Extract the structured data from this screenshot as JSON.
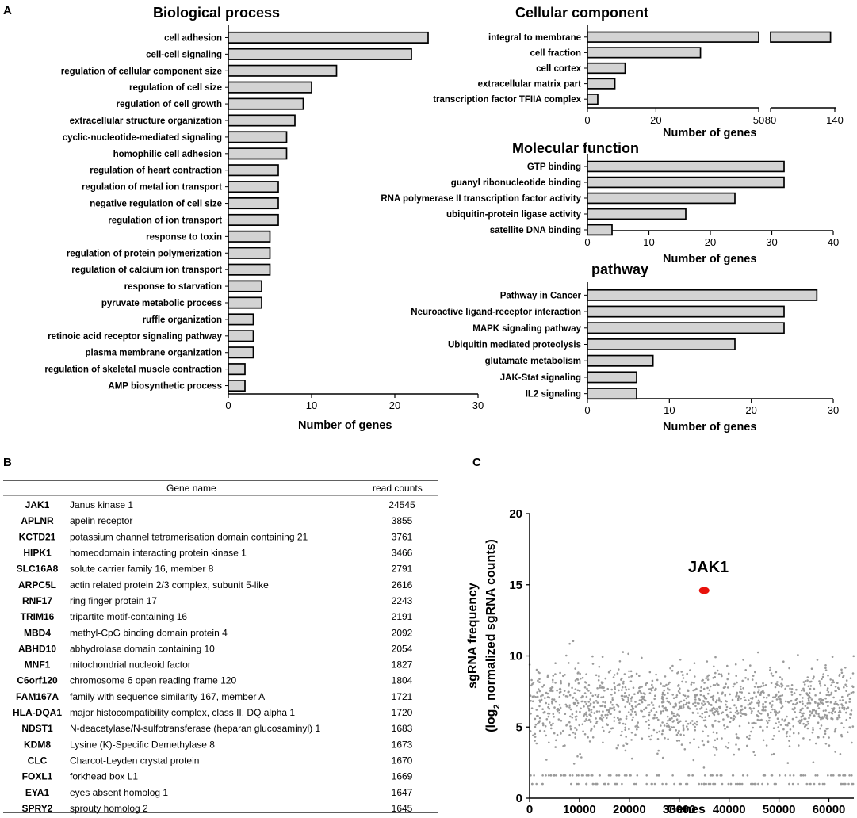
{
  "panels": {
    "a": "A",
    "b": "B",
    "c": "C"
  },
  "chart_data": [
    {
      "id": "bp",
      "type": "bar",
      "orientation": "horizontal",
      "title": "Biological process",
      "xlabel": "Number of genes",
      "xlim": [
        0,
        30
      ],
      "xticks": [
        0,
        10,
        20,
        30
      ],
      "categories": [
        "cell adhesion",
        "cell-cell signaling",
        "regulation of cellular component size",
        "regulation of cell size",
        "regulation of cell growth",
        "extracellular structure organization",
        "cyclic-nucleotide-mediated signaling",
        "homophilic cell adhesion",
        "regulation of heart contraction",
        "regulation of metal ion transport",
        "negative regulation of cell size",
        "regulation of ion transport",
        "response to toxin",
        "regulation of protein polymerization",
        "regulation of calcium ion transport",
        "response to starvation",
        "pyruvate metabolic process",
        "ruffle organization",
        "retinoic acid receptor signaling pathway",
        "plasma membrane organization",
        "regulation of skeletal muscle contraction",
        "AMP biosynthetic process"
      ],
      "values": [
        24,
        22,
        13,
        10,
        9,
        8,
        7,
        7,
        6,
        6,
        6,
        6,
        5,
        5,
        5,
        4,
        4,
        3,
        3,
        3,
        2,
        2
      ]
    },
    {
      "id": "cc",
      "type": "bar",
      "orientation": "horizontal",
      "title": "Cellular component",
      "xlabel": "Number of genes",
      "axis_break": true,
      "xlim": [
        0,
        140
      ],
      "xticks": [
        0,
        20,
        50,
        80,
        140
      ],
      "categories": [
        "integral to membrane",
        "cell fraction",
        "cell cortex",
        "extracellular matrix part",
        "transcription factor TFIIA complex"
      ],
      "values": [
        136,
        33,
        11,
        8,
        3
      ]
    },
    {
      "id": "mf",
      "type": "bar",
      "orientation": "horizontal",
      "title": "Molecular function",
      "xlabel": "Number of genes",
      "xlim": [
        0,
        40
      ],
      "xticks": [
        0,
        10,
        20,
        30,
        40
      ],
      "categories": [
        "GTP binding",
        "guanyl ribonucleotide binding",
        "RNA polymerase II transcription factor activity",
        "ubiquitin-protein ligase activity",
        "satellite DNA binding"
      ],
      "values": [
        32,
        32,
        24,
        16,
        4
      ]
    },
    {
      "id": "pw",
      "type": "bar",
      "orientation": "horizontal",
      "title": "pathway",
      "xlabel": "Number of genes",
      "xlim": [
        0,
        30
      ],
      "xticks": [
        0,
        10,
        20,
        30
      ],
      "categories": [
        "Pathway in Cancer",
        "Neuroactive ligand-receptor interaction",
        "MAPK signaling pathway",
        "Ubiquitin mediated proteolysis",
        "glutamate metabolism",
        "JAK-Stat signaling",
        "IL2 signaling"
      ],
      "values": [
        28,
        24,
        24,
        18,
        8,
        6,
        6
      ]
    },
    {
      "id": "table",
      "type": "table",
      "columns": [
        "Gene name",
        "read counts"
      ],
      "rows": [
        [
          "JAK1",
          "Janus kinase 1",
          "24545"
        ],
        [
          "APLNR",
          "apelin receptor",
          "3855"
        ],
        [
          "KCTD21",
          "potassium channel tetramerisation domain containing 21",
          "3761"
        ],
        [
          "HIPK1",
          "homeodomain interacting protein kinase 1",
          "3466"
        ],
        [
          "SLC16A8",
          "solute carrier family 16, member 8",
          "2791"
        ],
        [
          "ARPC5L",
          "actin related protein 2/3 complex, subunit 5-like",
          "2616"
        ],
        [
          "RNF17",
          "ring finger protein 17",
          "2243"
        ],
        [
          "TRIM16",
          "tripartite motif-containing 16",
          "2191"
        ],
        [
          "MBD4",
          "methyl-CpG binding domain protein 4",
          "2092"
        ],
        [
          "ABHD10",
          "abhydrolase domain containing 10",
          "2054"
        ],
        [
          "MNF1",
          "mitochondrial nucleoid factor",
          "1827"
        ],
        [
          "C6orf120",
          "chromosome 6 open reading frame 120",
          "1804"
        ],
        [
          "FAM167A",
          "family with sequence similarity 167, member A",
          "1721"
        ],
        [
          "HLA-DQA1",
          "major histocompatibility complex, class II, DQ alpha 1",
          "1720"
        ],
        [
          "NDST1",
          "N-deacetylase/N-sulfotransferase (heparan glucosaminyl) 1",
          "1683"
        ],
        [
          "KDM8",
          "Lysine (K)-Specific Demethylase 8",
          "1673"
        ],
        [
          "CLC",
          "Charcot-Leyden crystal protein",
          "1670"
        ],
        [
          "FOXL1",
          "forkhead box L1",
          "1669"
        ],
        [
          "EYA1",
          "eyes absent homolog 1",
          "1647"
        ],
        [
          "SPRY2",
          "sprouty homolog 2",
          "1645"
        ]
      ]
    },
    {
      "id": "scatter",
      "type": "scatter",
      "xlabel": "Genes",
      "ylabel_line1": "sgRNA frequency",
      "ylabel_line2_pre": "(log",
      "ylabel_sub": "2",
      "ylabel_line2_post": " normalized sgRNA counts)",
      "xlim": [
        0,
        65000
      ],
      "ylim": [
        0,
        20
      ],
      "xticks": [
        0,
        10000,
        20000,
        30000,
        40000,
        50000,
        60000
      ],
      "yticks": [
        0,
        5,
        10,
        15,
        20
      ],
      "highlight": {
        "label": "JAK1",
        "x": 35000,
        "y": 14.6,
        "color": "#e8120c"
      },
      "point_color": "#9a9a9a",
      "n_points": 1500,
      "distribution": {
        "mean": 6.5,
        "sd": 1.4,
        "floor_value": 1,
        "max": 12
      }
    }
  ]
}
